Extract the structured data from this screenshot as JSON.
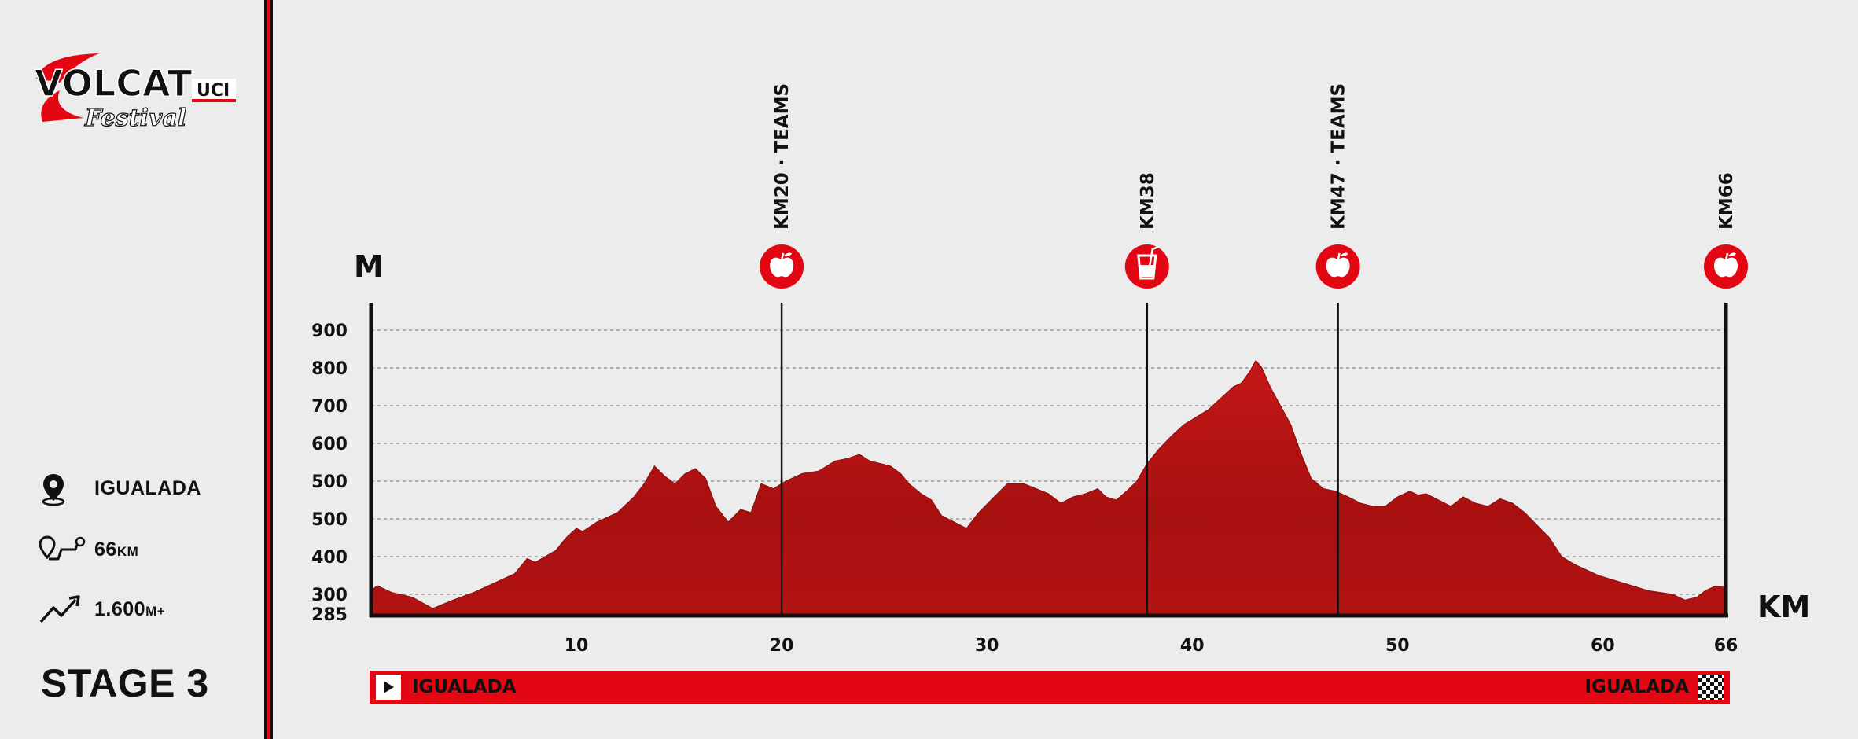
{
  "brand": {
    "name_main": "VOLCAT",
    "name_sub": "Festival",
    "badge": "UCI"
  },
  "info": {
    "location_label": "IGUALADA",
    "distance_value": "66",
    "distance_unit": "KM",
    "elevation_value": "1.600",
    "elevation_unit": "M+"
  },
  "stage_label": "STAGE 3",
  "chart_data": {
    "type": "area",
    "ylabel": "M",
    "xlabel": "KM",
    "xlim": [
      0,
      66
    ],
    "x_ticks": [
      "10",
      "20",
      "30",
      "40",
      "50",
      "60",
      "66"
    ],
    "y_ticks": [
      "900",
      "800",
      "700",
      "600",
      "500",
      "500",
      "400",
      "300",
      "285"
    ],
    "color": "#b81414",
    "x": [
      0,
      0.3,
      1,
      2,
      3,
      4,
      5,
      6,
      7,
      7.6,
      8,
      9,
      9.5,
      10,
      10.3,
      11,
      12,
      12.8,
      13.3,
      13.8,
      14.3,
      14.8,
      15.3,
      15.8,
      16.3,
      16.8,
      17.4,
      18,
      18.5,
      19,
      19.6,
      20.2,
      21,
      21.8,
      22.6,
      23.2,
      23.8,
      24.3,
      24.8,
      25.3,
      25.8,
      26.2,
      26.8,
      27.3,
      27.8,
      28.4,
      29,
      29.6,
      30.2,
      31,
      31.8,
      32.4,
      33,
      33.6,
      34.2,
      34.8,
      35.4,
      35.8,
      36.3,
      36.8,
      37.3,
      37.8,
      38.4,
      39,
      39.6,
      40.2,
      40.8,
      41.4,
      42,
      42.4,
      42.8,
      43.1,
      43.4,
      43.8,
      44.3,
      44.8,
      45.3,
      45.8,
      46.4,
      47,
      47.6,
      48.2,
      48.8,
      49.4,
      50,
      50.6,
      51,
      51.4,
      52,
      52.6,
      53.2,
      53.8,
      54.4,
      55,
      55.6,
      56.2,
      56.8,
      57.4,
      58,
      58.6,
      59.2,
      59.8,
      60.4,
      61,
      61.6,
      62.2,
      62.8,
      63.4,
      64,
      64.6,
      65,
      65.5,
      66
    ],
    "y": [
      310,
      323,
      305,
      298,
      290,
      296,
      305,
      330,
      355,
      395,
      385,
      410,
      430,
      445,
      440,
      455,
      470,
      495,
      520,
      555,
      535,
      520,
      540,
      550,
      530,
      480,
      455,
      475,
      470,
      520,
      510,
      525,
      540,
      545,
      565,
      570,
      578,
      565,
      560,
      555,
      540,
      520,
      500,
      490,
      465,
      455,
      445,
      470,
      490,
      520,
      520,
      510,
      500,
      485,
      495,
      500,
      510,
      495,
      490,
      505,
      525,
      560,
      590,
      620,
      650,
      670,
      690,
      720,
      750,
      760,
      790,
      820,
      800,
      750,
      700,
      650,
      580,
      530,
      510,
      505,
      495,
      485,
      480,
      480,
      495,
      505,
      498,
      500,
      490,
      480,
      495,
      485,
      480,
      492,
      485,
      470,
      450,
      430,
      400,
      380,
      365,
      350,
      340,
      330,
      320,
      310,
      305,
      300,
      296,
      298,
      310,
      322,
      318
    ]
  },
  "markers": [
    {
      "km": 20,
      "label": "KM20 · TEAMS",
      "icon": "apple-icon"
    },
    {
      "km": 37.8,
      "label": "KM38",
      "icon": "drink-icon"
    },
    {
      "km": 47.1,
      "label": "KM47 · TEAMS",
      "icon": "apple-icon"
    },
    {
      "km": 66,
      "label": "KM66",
      "icon": "apple-icon"
    }
  ],
  "route": {
    "start": "IGUALADA",
    "finish": "IGUALADA"
  },
  "colors": {
    "accent": "#e30613",
    "profile": "#b81414",
    "text": "#111111",
    "background": "#ececec"
  }
}
